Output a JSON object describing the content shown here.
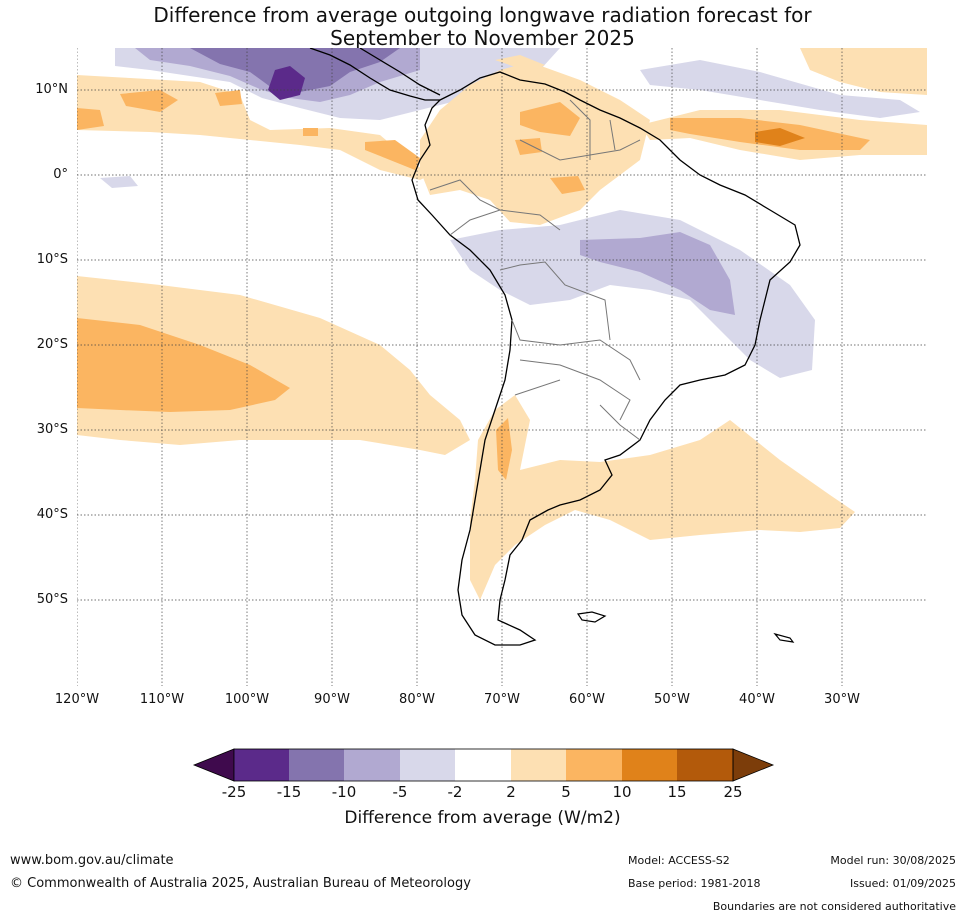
{
  "title": {
    "line1": "Difference from average outgoing longwave radiation forecast for",
    "line2": "September to November 2025"
  },
  "map": {
    "lat_labels": [
      "10°N",
      "0°",
      "10°S",
      "20°S",
      "30°S",
      "40°S",
      "50°S"
    ],
    "lon_labels": [
      "120°W",
      "110°W",
      "100°W",
      "90°W",
      "80°W",
      "70°W",
      "60°W",
      "50°W",
      "40°W",
      "30°W"
    ]
  },
  "colorbar": {
    "title": "Difference from average (W/m2)",
    "ticks": [
      "-25",
      "-15",
      "-10",
      "-5",
      "-2",
      "2",
      "5",
      "10",
      "15",
      "25"
    ],
    "colors": [
      "#3f0a4d",
      "#5b2a8a",
      "#8474ae",
      "#b1a9d1",
      "#d8d8ea",
      "#ffffff",
      "#fde0b3",
      "#fbb561",
      "#e0821a",
      "#b35a0b",
      "#7c3d0a"
    ]
  },
  "footer": {
    "url": "www.bom.gov.au/climate",
    "copyright": "© Commonwealth of Australia 2025, Australian Bureau of Meteorology",
    "model": "Model: ACCESS-S2",
    "base_period": "Base period: 1981-2018",
    "model_run": "Model run: 30/08/2025",
    "issued": "Issued: 01/09/2025",
    "disclaimer": "Boundaries are not considered authoritative"
  }
}
